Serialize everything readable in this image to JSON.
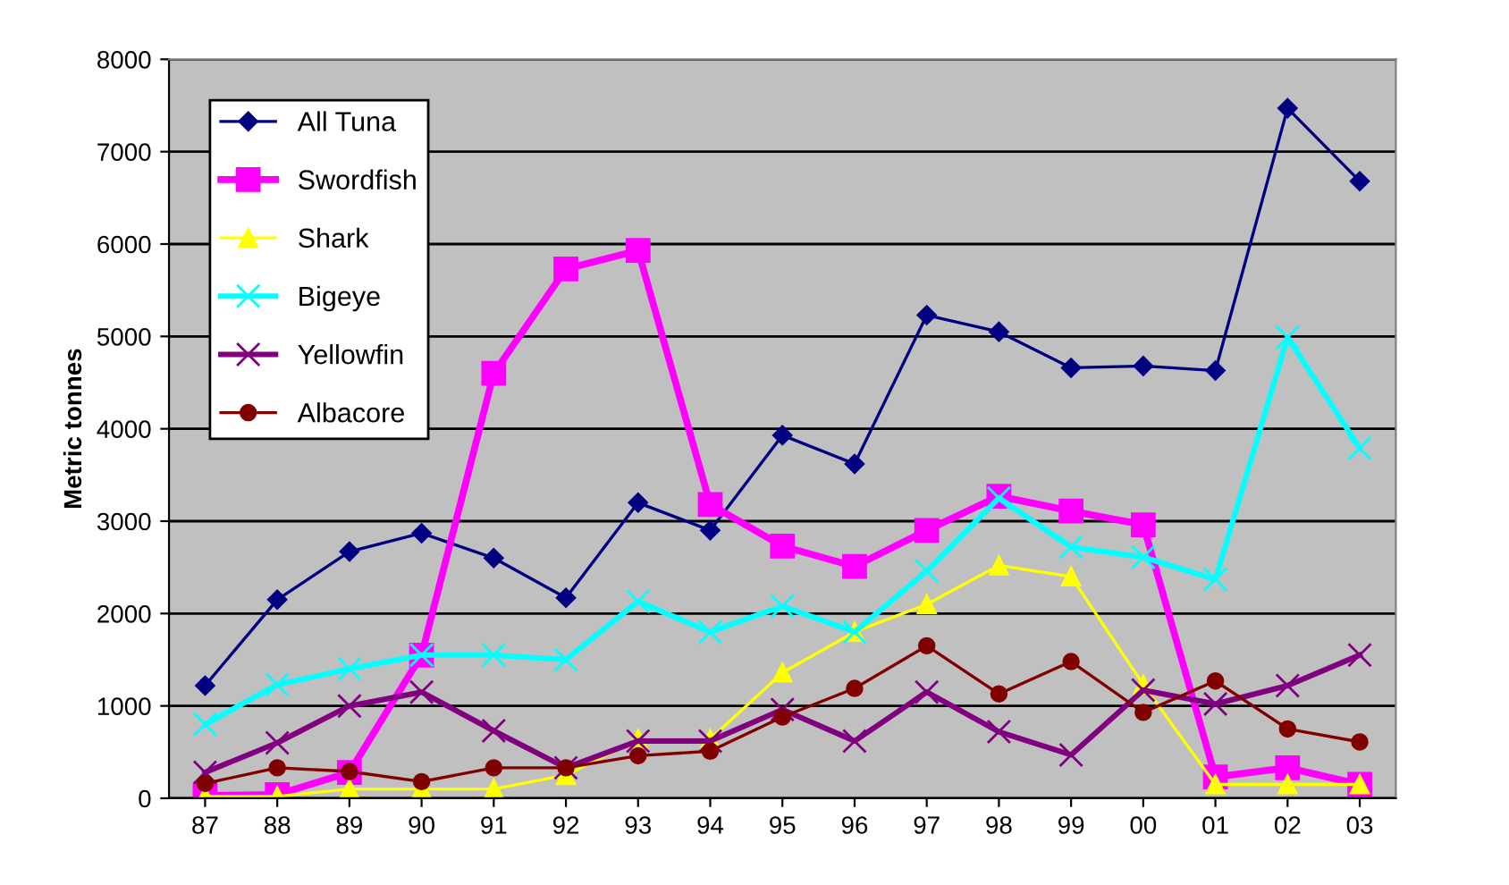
{
  "chart_data": {
    "type": "line",
    "ylabel": "Metric tonnes",
    "categories": [
      "87",
      "88",
      "89",
      "90",
      "91",
      "92",
      "93",
      "94",
      "95",
      "96",
      "97",
      "98",
      "99",
      "00",
      "01",
      "02",
      "03"
    ],
    "series": [
      {
        "name": "All Tuna",
        "color": "#000080",
        "marker": "diamond",
        "values": [
          1220,
          2150,
          2670,
          2870,
          2600,
          2170,
          3200,
          2900,
          3930,
          3620,
          5230,
          5050,
          4660,
          4680,
          4630,
          7470,
          6680
        ]
      },
      {
        "name": "Swordfish",
        "color": "#ff00ff",
        "marker": "square",
        "values": [
          30,
          40,
          280,
          1550,
          4600,
          5730,
          5930,
          3180,
          2730,
          2510,
          2900,
          3270,
          3110,
          2960,
          230,
          330,
          150
        ]
      },
      {
        "name": "Shark",
        "color": "#ffff00",
        "marker": "triangle",
        "values": [
          20,
          20,
          100,
          100,
          100,
          250,
          640,
          640,
          1360,
          1800,
          2100,
          2520,
          2400,
          1230,
          150,
          150,
          150
        ]
      },
      {
        "name": "Bigeye",
        "color": "#00ffff",
        "marker": "cross",
        "values": [
          800,
          1230,
          1400,
          1550,
          1550,
          1500,
          2130,
          1800,
          2080,
          1800,
          2460,
          3250,
          2720,
          2610,
          2370,
          4990,
          3790
        ]
      },
      {
        "name": "Yellowfin",
        "color": "#800080",
        "marker": "cross",
        "values": [
          280,
          600,
          1000,
          1150,
          730,
          330,
          620,
          620,
          960,
          620,
          1150,
          720,
          470,
          1170,
          1020,
          1220,
          1550
        ]
      },
      {
        "name": "Albacore",
        "color": "#800000",
        "marker": "circle",
        "values": [
          160,
          330,
          290,
          180,
          330,
          330,
          460,
          510,
          880,
          1190,
          1650,
          1130,
          1480,
          930,
          1270,
          750,
          610
        ]
      }
    ],
    "ylim": [
      0,
      8000
    ],
    "yticks": [
      0,
      1000,
      2000,
      3000,
      4000,
      5000,
      6000,
      7000,
      8000
    ],
    "grid": "y",
    "legend": "top left",
    "line_style": "solid"
  }
}
